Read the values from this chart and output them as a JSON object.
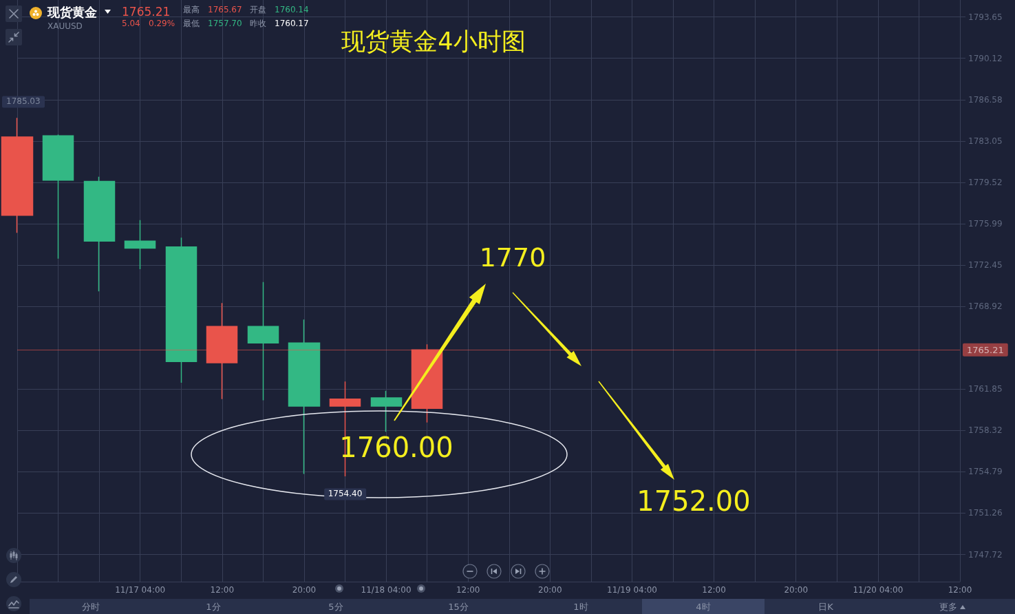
{
  "chart_data": {
    "type": "candlestick",
    "title": "现货黄金4小时图",
    "categories": [
      null,
      null,
      null,
      "11/17 04:00",
      null,
      "12:00",
      null,
      "20:00",
      null,
      "11/18 04:00",
      null,
      "12:00",
      null,
      "20:00",
      null,
      "11/19 04:00",
      null,
      "12:00",
      null,
      "20:00",
      null,
      "11/20 04:00",
      null,
      "12:00"
    ],
    "ohlc": [
      [
        1776.7,
        1785.03,
        1775.2,
        1783.4
      ],
      [
        1783.5,
        1783.6,
        1773.0,
        1779.7
      ],
      [
        1779.6,
        1780.0,
        1770.2,
        1774.5
      ],
      [
        1774.5,
        1776.3,
        1772.1,
        1773.9
      ],
      [
        1774.0,
        1774.8,
        1762.4,
        1764.2
      ],
      [
        1764.1,
        1769.2,
        1761.0,
        1767.2
      ],
      [
        1767.2,
        1771.0,
        1760.9,
        1765.8
      ],
      [
        1765.8,
        1767.8,
        1754.6,
        1760.4
      ],
      [
        1760.4,
        1762.5,
        1754.4,
        1761.0
      ],
      [
        1761.1,
        1761.7,
        1758.2,
        1760.4
      ],
      [
        1760.2,
        1765.67,
        1759.0,
        1765.21
      ],
      null,
      null,
      null,
      null,
      null,
      null,
      null,
      null,
      null,
      null,
      null,
      null,
      null
    ],
    "colors": [
      "#e9544b",
      "#33b884",
      "#33b884",
      "#33b884",
      "#33b884",
      "#e9544b",
      "#33b884",
      "#33b884",
      "#e9544b",
      "#33b884",
      "#e9544b",
      null,
      null,
      null,
      null,
      null,
      null,
      null,
      null,
      null,
      null,
      null,
      null,
      null
    ],
    "ylim": [
      1745.4,
      1795.1
    ],
    "yticks": [
      1747.72,
      1751.26,
      1754.79,
      1758.32,
      1761.85,
      1768.92,
      1772.45,
      1775.99,
      1779.52,
      1783.05,
      1786.58,
      1790.12,
      1793.65
    ],
    "grid": true,
    "ref_lines": [
      {
        "axis": "y",
        "value": 1765.21,
        "label": "1765.21",
        "color": "#e9544b"
      }
    ],
    "annotations": [
      "现货黄金",
      "XAUUSD",
      "1765.21",
      "5.04",
      "0.29%",
      "最高",
      "1765.67",
      "开盘",
      "1760.14",
      "最低",
      "1757.70",
      "昨收",
      "1760.17",
      "1770",
      "1760.00",
      "1752.00",
      {
        "text": "1754.40",
        "y": 1754.4
      },
      "1785.03",
      "分时",
      "1分",
      "5分",
      "15分",
      "1时",
      "4时",
      "日K",
      "更多"
    ]
  }
}
